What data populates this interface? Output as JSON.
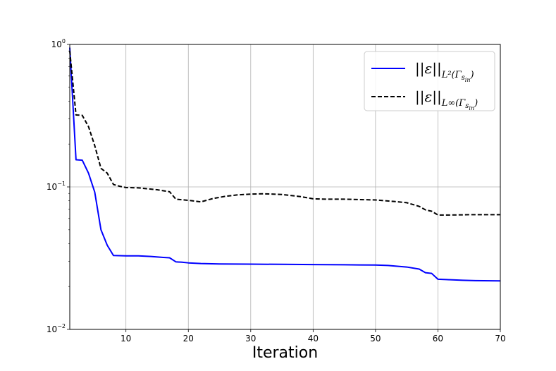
{
  "chart_data": {
    "type": "line",
    "xlabel": "Iteration",
    "ylabel": "",
    "title": "",
    "xlim": [
      1,
      70
    ],
    "ylim": [
      0.01,
      1
    ],
    "yscale": "log",
    "grid": true,
    "legend_placement": "upper-right",
    "x_ticks": [
      10,
      20,
      30,
      40,
      50,
      60,
      70
    ],
    "x_tick_labels": [
      "10",
      "20",
      "30",
      "40",
      "50",
      "60",
      "70"
    ],
    "y_ticks": [
      1,
      0.1,
      0.01
    ],
    "y_tick_labels": [
      {
        "base": "10",
        "exp": "0"
      },
      {
        "base": "10",
        "exp": "−1"
      },
      {
        "base": "10",
        "exp": "−2"
      }
    ],
    "series": [
      {
        "name": "||ε||L²(Γs_in)",
        "legend_label": {
          "main": "||ε||",
          "sub": "L²(Γ",
          "subsub": "s",
          "subsubsub": "in",
          "close": ")"
        },
        "color": "#0000ff",
        "dash": "solid",
        "points": [
          [
            1,
            0.95
          ],
          [
            2,
            0.155
          ],
          [
            3,
            0.154
          ],
          [
            4,
            0.125
          ],
          [
            5,
            0.092
          ],
          [
            6,
            0.05
          ],
          [
            7,
            0.039
          ],
          [
            8,
            0.033
          ],
          [
            9,
            0.0329
          ],
          [
            10,
            0.0328
          ],
          [
            12,
            0.0328
          ],
          [
            14,
            0.0325
          ],
          [
            16,
            0.032
          ],
          [
            17,
            0.0318
          ],
          [
            18,
            0.0298
          ],
          [
            19,
            0.0296
          ],
          [
            20,
            0.0293
          ],
          [
            22,
            0.029
          ],
          [
            25,
            0.0288
          ],
          [
            30,
            0.0287
          ],
          [
            35,
            0.0286
          ],
          [
            40,
            0.0285
          ],
          [
            45,
            0.0284
          ],
          [
            50,
            0.0283
          ],
          [
            52,
            0.0281
          ],
          [
            55,
            0.0274
          ],
          [
            57,
            0.0265
          ],
          [
            58,
            0.025
          ],
          [
            59,
            0.0247
          ],
          [
            60,
            0.0225
          ],
          [
            62,
            0.0223
          ],
          [
            64,
            0.0221
          ],
          [
            66,
            0.022
          ],
          [
            70,
            0.0219
          ]
        ]
      },
      {
        "name": "||ε||L∞(Γs_in)",
        "legend_label": {
          "main": "||ε||",
          "sub": "L∞(Γ",
          "subsub": "s",
          "subsubsub": "in",
          "close": ")"
        },
        "color": "#000000",
        "dash": "dashed",
        "points": [
          [
            1,
            0.9
          ],
          [
            2,
            0.32
          ],
          [
            3,
            0.318
          ],
          [
            4,
            0.265
          ],
          [
            5,
            0.195
          ],
          [
            6,
            0.135
          ],
          [
            7,
            0.125
          ],
          [
            8,
            0.104
          ],
          [
            9,
            0.101
          ],
          [
            10,
            0.099
          ],
          [
            12,
            0.0985
          ],
          [
            15,
            0.0955
          ],
          [
            17,
            0.0925
          ],
          [
            18,
            0.082
          ],
          [
            20,
            0.0805
          ],
          [
            22,
            0.0785
          ],
          [
            24,
            0.083
          ],
          [
            26,
            0.086
          ],
          [
            28,
            0.088
          ],
          [
            30,
            0.089
          ],
          [
            32,
            0.0895
          ],
          [
            35,
            0.0885
          ],
          [
            38,
            0.0855
          ],
          [
            40,
            0.0825
          ],
          [
            42,
            0.082
          ],
          [
            45,
            0.082
          ],
          [
            50,
            0.081
          ],
          [
            53,
            0.079
          ],
          [
            55,
            0.0775
          ],
          [
            57,
            0.073
          ],
          [
            58,
            0.069
          ],
          [
            59,
            0.0675
          ],
          [
            60,
            0.0635
          ],
          [
            62,
            0.0635
          ],
          [
            65,
            0.0638
          ],
          [
            70,
            0.0638
          ]
        ]
      }
    ]
  }
}
